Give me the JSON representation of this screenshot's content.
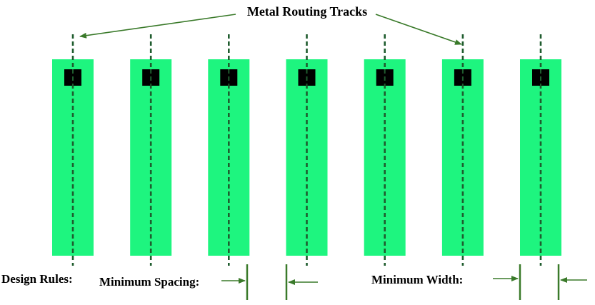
{
  "title": "Metal Routing Tracks",
  "design_rules_label": "Design Rules:",
  "min_spacing_label": "Minimum Spacing:",
  "min_width_label": "Minimum Width:",
  "track_count": 7,
  "colors": {
    "metal": "#1ef57f",
    "track": "#1f5c2e",
    "via": "#000000",
    "arrow": "#3a7a2a",
    "background": "#ffffff"
  }
}
